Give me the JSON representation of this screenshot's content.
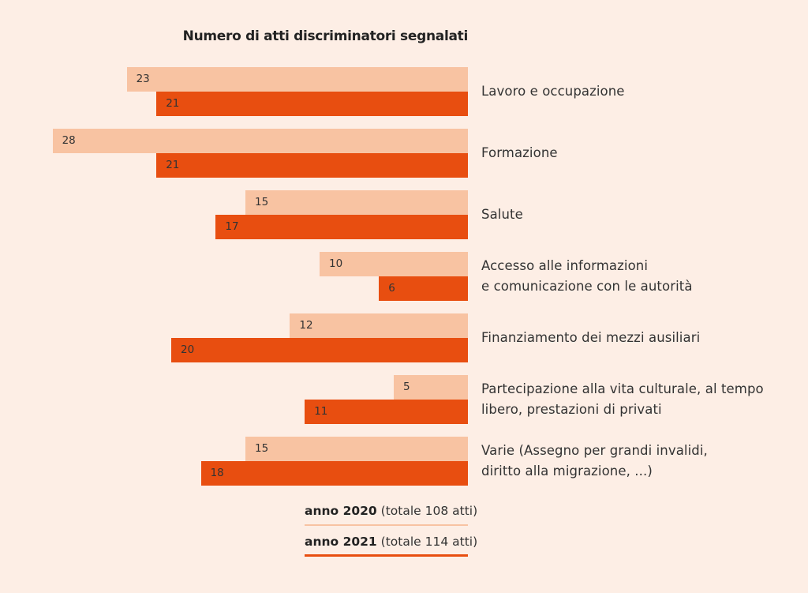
{
  "chart_data": {
    "type": "bar",
    "orientation": "horizontal",
    "title": "Numero di atti discriminatori segnalati",
    "categories": [
      [
        "Lavoro e occupazione"
      ],
      [
        "Formazione"
      ],
      [
        "Salute"
      ],
      [
        "Accesso alle informazioni",
        "e comunicazione con le autorità"
      ],
      [
        "Finanziamento dei mezzi ausiliari"
      ],
      [
        "Partecipazione alla vita culturale, al tempo",
        "libero, prestazioni di privati"
      ],
      [
        "Varie (Assegno per grandi invalidi,",
        "diritto alla migrazione, ...)"
      ]
    ],
    "series": [
      {
        "name": "anno 2020",
        "total": "(totale 108 atti)",
        "color": "#f8c3a2",
        "values": [
          23,
          28,
          15,
          10,
          12,
          5,
          15
        ]
      },
      {
        "name": "anno 2021",
        "total": "(totale 114 atti)",
        "color": "#e84e10",
        "values": [
          21,
          21,
          17,
          6,
          20,
          11,
          18
        ]
      }
    ],
    "legend_position": "bottom",
    "grid": false
  }
}
